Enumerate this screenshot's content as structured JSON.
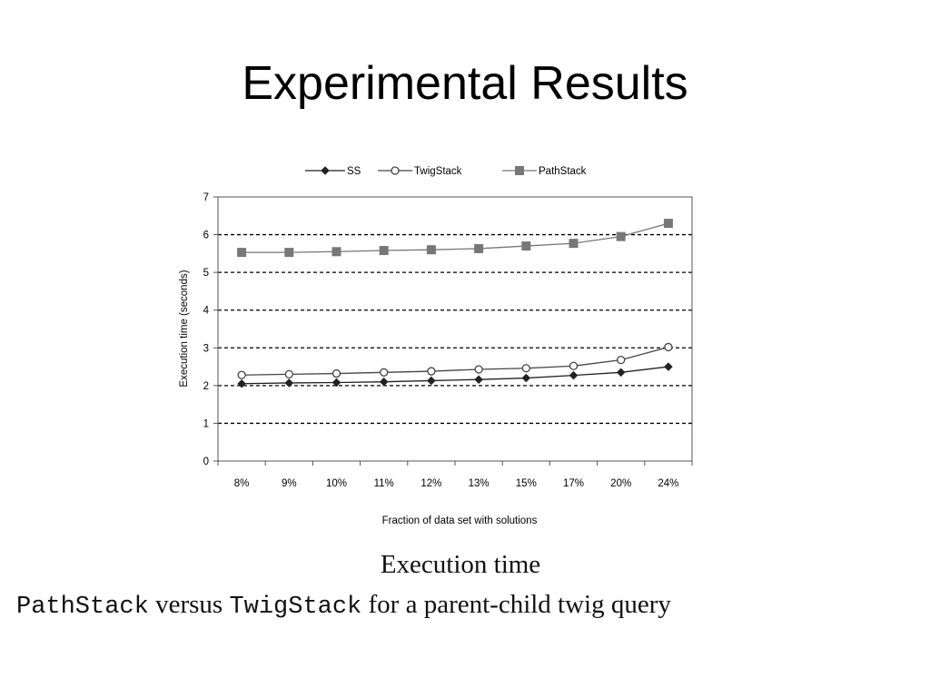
{
  "slide": {
    "title": "Experimental Results",
    "caption": {
      "line1": "Execution time",
      "line2_code1": "PathStack",
      "line2_text1": " versus ",
      "line2_code2": "TwigStack",
      "line2_text2": " for a parent-child twig query"
    }
  },
  "chart_data": {
    "type": "line",
    "categories": [
      "8%",
      "9%",
      "10%",
      "11%",
      "12%",
      "13%",
      "15%",
      "17%",
      "20%",
      "24%"
    ],
    "series": [
      {
        "name": "SS",
        "marker": "filled-diamond",
        "color": "#222222",
        "values": [
          2.05,
          2.07,
          2.08,
          2.1,
          2.13,
          2.16,
          2.2,
          2.27,
          2.35,
          2.5
        ]
      },
      {
        "name": "TwigStack",
        "marker": "open-circle",
        "color": "#444444",
        "values": [
          2.28,
          2.3,
          2.32,
          2.35,
          2.38,
          2.43,
          2.46,
          2.52,
          2.68,
          3.02
        ]
      },
      {
        "name": "PathStack",
        "marker": "filled-square",
        "color": "#777777",
        "values": [
          5.53,
          5.53,
          5.55,
          5.58,
          5.6,
          5.63,
          5.7,
          5.77,
          5.95,
          6.3
        ]
      }
    ],
    "xlabel": "Fraction of data set with solutions",
    "ylabel": "Execution time (seconds)",
    "ylim": [
      0,
      7
    ],
    "yticks": [
      "0",
      "1",
      "2",
      "3",
      "4",
      "5",
      "6",
      "7"
    ],
    "grid": "dashed horizontal",
    "legend_position": "top"
  }
}
